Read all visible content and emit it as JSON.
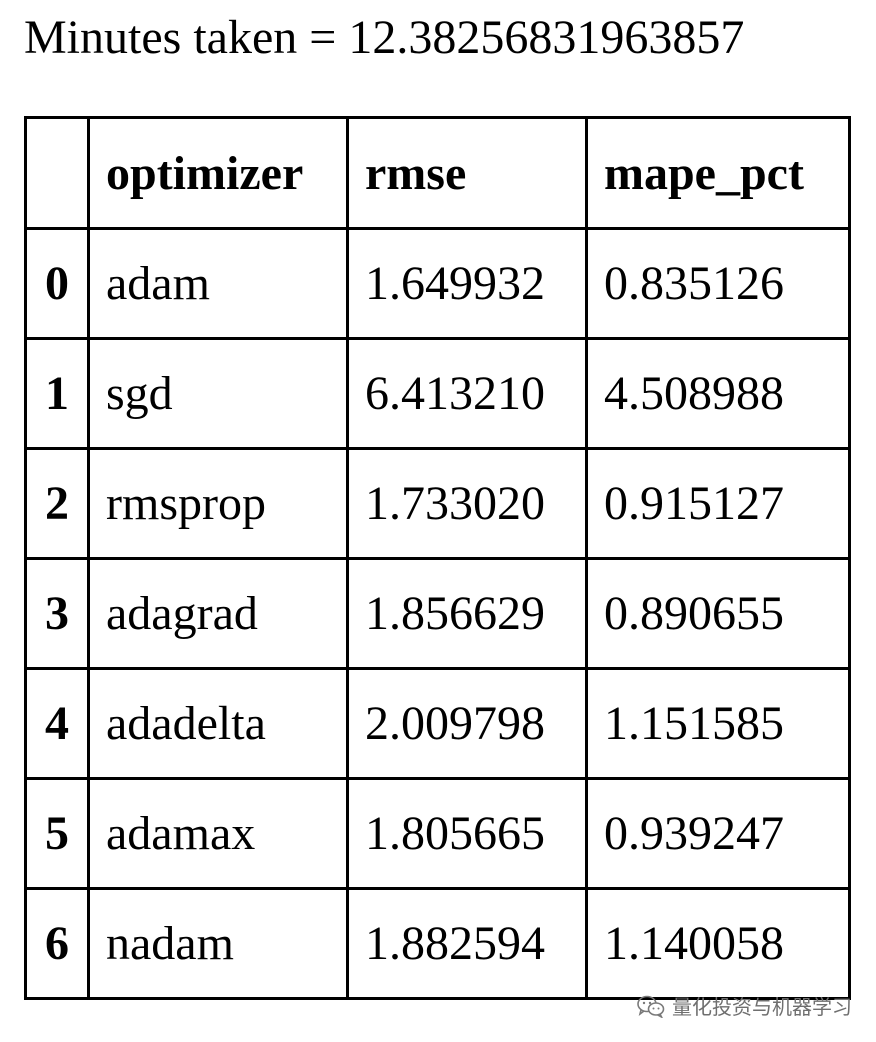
{
  "caption": "Minutes taken = 12.38256831963857",
  "table": {
    "columns": [
      "",
      "optimizer",
      "rmse",
      "mape_pct"
    ],
    "rows": [
      {
        "index": "0",
        "optimizer": "adam",
        "rmse": "1.649932",
        "mape_pct": "0.835126"
      },
      {
        "index": "1",
        "optimizer": "sgd",
        "rmse": "6.413210",
        "mape_pct": "4.508988"
      },
      {
        "index": "2",
        "optimizer": "rmsprop",
        "rmse": "1.733020",
        "mape_pct": "0.915127"
      },
      {
        "index": "3",
        "optimizer": "adagrad",
        "rmse": "1.856629",
        "mape_pct": "0.890655"
      },
      {
        "index": "4",
        "optimizer": "adadelta",
        "rmse": "2.009798",
        "mape_pct": "1.151585"
      },
      {
        "index": "5",
        "optimizer": "adamax",
        "rmse": "1.805665",
        "mape_pct": "0.939247"
      },
      {
        "index": "6",
        "optimizer": "nadam",
        "rmse": "1.882594",
        "mape_pct": "1.140058"
      }
    ]
  },
  "watermark": {
    "icon": "wechat-icon",
    "text": "量化投资与机器学习"
  }
}
